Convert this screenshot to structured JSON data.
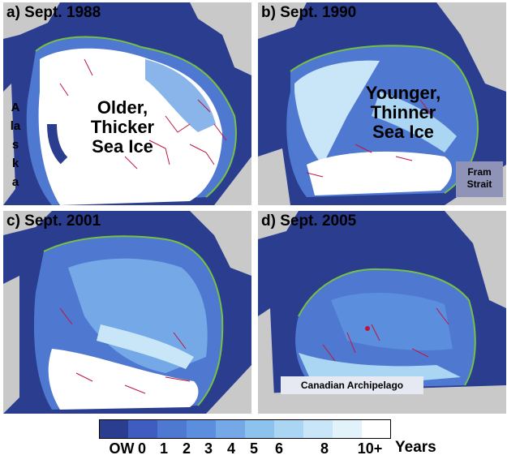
{
  "panels": [
    {
      "title": "a) Sept. 1988",
      "label": "Older,\nThicker\nSea Ice",
      "extra": "Alaska"
    },
    {
      "title": "b) Sept. 1990",
      "label": "Younger,\nThinner\nSea Ice",
      "extra": "Fram\nStrait"
    },
    {
      "title": "c) Sept. 2001"
    },
    {
      "title": "d) Sept. 2005",
      "extra": "Canadian Archipelago"
    }
  ],
  "legend": {
    "ticks": [
      "OW",
      "0",
      "1",
      "2",
      "3",
      "4",
      "5",
      "6",
      "8",
      "10+"
    ],
    "units": "Years",
    "colors": [
      "#2a3d8f",
      "#3f5dc0",
      "#4f78d0",
      "#5c8ede",
      "#74a8e6",
      "#8ec2ee",
      "#aad6f4",
      "#c8e6f8",
      "#e2f2fb",
      "#ffffff"
    ]
  },
  "colors": {
    "ocean": "#2a3d8f",
    "land": "#c9c9c9",
    "ice_edge": "#76c043",
    "drift": "#c0143c"
  }
}
